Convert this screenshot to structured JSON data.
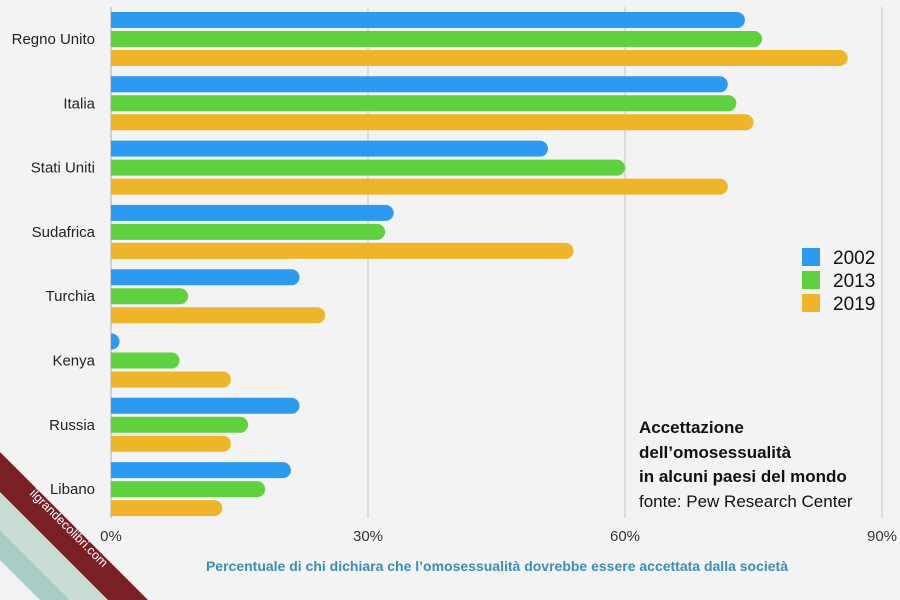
{
  "chart_data": {
    "type": "bar",
    "orientation": "horizontal",
    "categories": [
      "Regno Unito",
      "Italia",
      "Stati Uniti",
      "Sudafrica",
      "Turchia",
      "Kenya",
      "Russia",
      "Libano"
    ],
    "series": [
      {
        "name": "2002",
        "color": "#2b9af0",
        "values": [
          74,
          72,
          51,
          33,
          22,
          1,
          22,
          21
        ]
      },
      {
        "name": "2013",
        "color": "#5fd13f",
        "values": [
          76,
          73,
          60,
          32,
          9,
          8,
          16,
          18
        ]
      },
      {
        "name": "2019",
        "color": "#efb52a",
        "values": [
          86,
          75,
          72,
          54,
          25,
          14,
          14,
          13
        ]
      }
    ],
    "xlim": [
      0,
      90
    ],
    "ticks": [
      0,
      30,
      60,
      90
    ],
    "tick_labels": [
      "0%",
      "30%",
      "60%",
      "90%"
    ],
    "xlabel": "Percentuale di chi dichiara che l’omosessualità dovrebbe essere accettata dalla società",
    "grid": true,
    "legend_position": "right"
  },
  "annotation": {
    "title_lines": [
      "Accettazione",
      "dell’omosessualità",
      "in alcuni paesi del mondo"
    ],
    "source": "fonte: Pew Research Center"
  },
  "watermark": "ilgrandecolibri.com",
  "colors": {
    "background": "#f3f3f3",
    "grid": "#bbbbbb",
    "xlabel": "#3a8fb8",
    "ribbon_dark": "#7a1f24",
    "ribbon_light": "#9fc7c0"
  }
}
